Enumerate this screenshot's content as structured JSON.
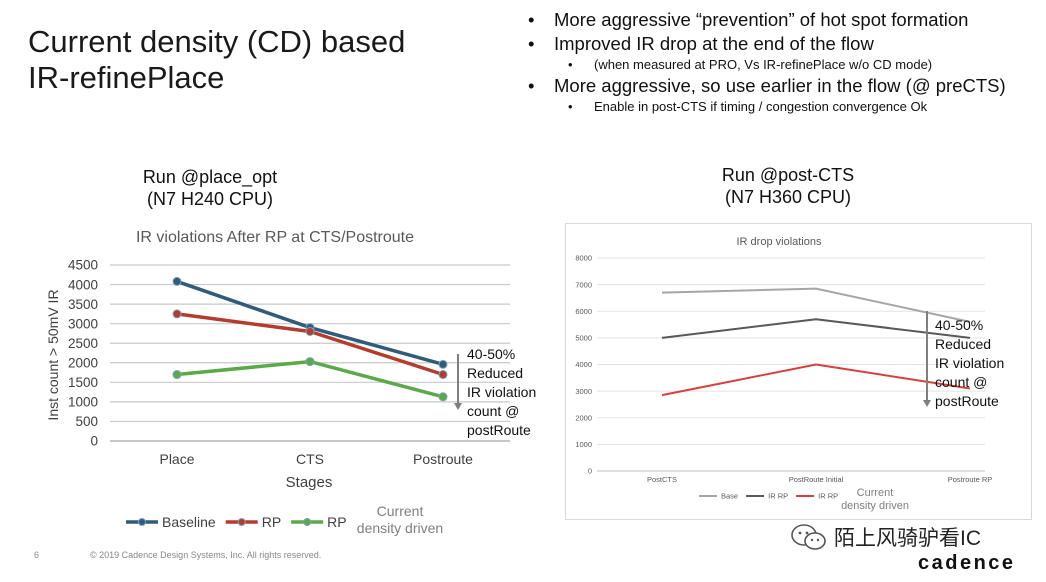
{
  "slide": {
    "title_line1": "Current density (CD) based",
    "title_line2": "IR-refinePlace",
    "page_number": "6",
    "copyright": "© 2019 Cadence Design Systems, Inc. All rights reserved.",
    "brand": "cadence",
    "watermark": "陌上风骑驴看IC"
  },
  "bullets": [
    {
      "level": 1,
      "text": "More aggressive “prevention” of hot spot formation"
    },
    {
      "level": 1,
      "text": "Improved IR drop at the end of the flow"
    },
    {
      "level": 2,
      "text": "(when measured at PRO, Vs IR-refinePlace w/o CD mode)"
    },
    {
      "level": 1,
      "text": "More aggressive, so use earlier in the flow (@ preCTS)"
    },
    {
      "level": 2,
      "text": "Enable in post-CTS if timing / congestion convergence Ok"
    }
  ],
  "left_panel": {
    "heading_line1": "Run @place_opt",
    "heading_line2": "(N7 H240 CPU)",
    "annotation": [
      "40-50%",
      "Reduced",
      "IR violation",
      "count @",
      "postRoute"
    ]
  },
  "right_panel": {
    "heading_line1": "Run @post-CTS",
    "heading_line2": "(N7 H360 CPU)",
    "annotation": [
      "40-50%",
      "Reduced",
      "IR violation",
      "count @",
      "postRoute"
    ]
  },
  "chart_data": [
    {
      "type": "line",
      "title": "IR violations After RP at CTS/Postroute",
      "xlabel": "Stages",
      "ylabel": "Inst count > 50mV IR",
      "categories": [
        "Place",
        "CTS",
        "Postroute"
      ],
      "ylim": [
        0,
        4500
      ],
      "yticks": [
        0,
        500,
        1000,
        1500,
        2000,
        2500,
        3000,
        3500,
        4000,
        4500
      ],
      "grid": true,
      "markers": true,
      "legend_position": "bottom",
      "legend_extra_text": "Current density driven",
      "series": [
        {
          "name": "Baseline",
          "color": "#2f5b7c",
          "values": [
            4080,
            2900,
            1960
          ]
        },
        {
          "name": "RP",
          "color": "#b43c2e",
          "values": [
            3250,
            2800,
            1700
          ]
        },
        {
          "name": "RP",
          "color": "#5aaa4a",
          "values": [
            1700,
            2030,
            1130
          ]
        }
      ]
    },
    {
      "type": "line",
      "title": "IR drop violations",
      "xlabel": "",
      "ylabel": "",
      "categories": [
        "PostCTS",
        "PostRoute Initial",
        "Postroute RP"
      ],
      "ylim": [
        0,
        8000
      ],
      "yticks": [
        0,
        1000,
        2000,
        3000,
        4000,
        5000,
        6000,
        7000,
        8000
      ],
      "grid": true,
      "markers": false,
      "legend_position": "bottom",
      "legend_extra_text": "Current density driven",
      "series": [
        {
          "name": "Base",
          "color": "#a6a6a6",
          "values": [
            6700,
            6850,
            5600
          ]
        },
        {
          "name": "IR RP",
          "color": "#595959",
          "values": [
            5000,
            5700,
            5000
          ]
        },
        {
          "name": "IR RP",
          "color": "#d9403a",
          "values": [
            2850,
            4000,
            3100
          ]
        }
      ]
    }
  ]
}
